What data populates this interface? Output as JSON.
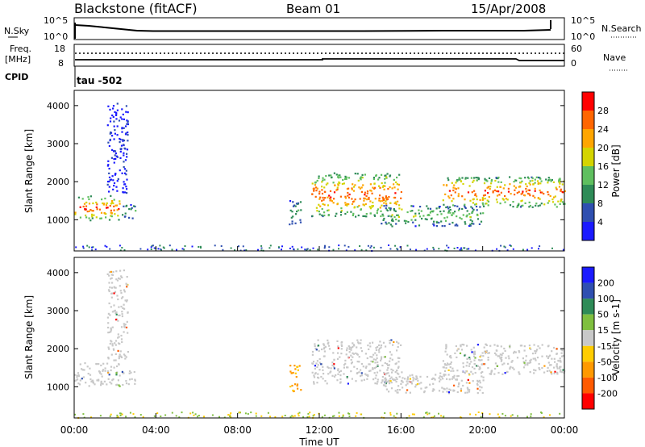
{
  "header": {
    "station": "Blackstone (fitACF)",
    "beam": "Beam 01",
    "date": "15/Apr/2008"
  },
  "noise_panel": {
    "left_label": "N.Sky",
    "left_ticks": [
      "10^5",
      "10^0"
    ],
    "right_label": "N.Search",
    "right_ticks": [
      "10^5",
      "10^0"
    ]
  },
  "freq_panel": {
    "left_label_1": "Freq.",
    "left_label_2": "[MHz]",
    "left_ticks": [
      "18",
      "8"
    ],
    "right_label": "Nave",
    "right_ticks": [
      "60",
      "0"
    ],
    "cpid_label": "CPID",
    "cpid_value": "tau -502"
  },
  "colors": {
    "power_scale": [
      "#1a1aff",
      "#2f4fb0",
      "#2e8b57",
      "#5fbf5f",
      "#d4d400",
      "#ffa500",
      "#ff6600",
      "#ff0000"
    ],
    "velocity_scale": [
      "#ff0000",
      "#ff5a00",
      "#ff9900",
      "#ffcc00",
      "#c8c8c8",
      "#7fbf3f",
      "#2e8b57",
      "#2f4fb0",
      "#1a1aff"
    ],
    "ground_scatter": "#c8c8c8"
  },
  "chart_data": [
    {
      "type": "heatmap",
      "title": "",
      "xlabel": "Time UT",
      "ylabel": "Slant Range [km]",
      "xlim": [
        "00:00",
        "24:00"
      ],
      "ylim": [
        180,
        4400
      ],
      "x_ticks": [
        "00:00",
        "04:00",
        "08:00",
        "12:00",
        "16:00",
        "20:00",
        "00:00"
      ],
      "y_ticks": [
        "1000",
        "2000",
        "3000",
        "4000"
      ],
      "colorbar_label": "Power [dB]",
      "colorbar_ticks": [
        "4",
        "8",
        "12",
        "16",
        "20",
        "24",
        "28"
      ],
      "colorbar_range": [
        0,
        32
      ],
      "bands": [
        {
          "t_start": 0.0,
          "t_end": 2.2,
          "range_min": 1000,
          "range_max": 1650,
          "peak_power": 28
        },
        {
          "t_start": 2.3,
          "t_end": 3.0,
          "range_min": 1050,
          "range_max": 1450,
          "peak_power": 12
        },
        {
          "t_start": 1.6,
          "t_end": 2.6,
          "range_min": 1700,
          "range_max": 4100,
          "peak_power": 4
        },
        {
          "t_start": 10.5,
          "t_end": 11.1,
          "range_min": 900,
          "range_max": 1600,
          "peak_power": 12
        },
        {
          "t_start": 11.6,
          "t_end": 16.0,
          "range_min": 1100,
          "range_max": 2250,
          "peak_power": 28
        },
        {
          "t_start": 15.0,
          "t_end": 20.0,
          "range_min": 850,
          "range_max": 1400,
          "peak_power": 16
        },
        {
          "t_start": 18.0,
          "t_end": 24.0,
          "range_min": 1350,
          "range_max": 2150,
          "peak_power": 28
        }
      ]
    },
    {
      "type": "heatmap",
      "title": "",
      "xlabel": "Time UT",
      "ylabel": "Slant Range [km]",
      "xlim": [
        "00:00",
        "24:00"
      ],
      "ylim": [
        180,
        4400
      ],
      "x_ticks": [
        "00:00",
        "04:00",
        "08:00",
        "12:00",
        "16:00",
        "20:00",
        "00:00"
      ],
      "y_ticks": [
        "1000",
        "2000",
        "3000",
        "4000"
      ],
      "colorbar_label": "Velocity [m s-1]",
      "colorbar_ticks": [
        "200",
        "100",
        "50",
        "15",
        "-15",
        "-50",
        "-100",
        "-200"
      ],
      "colorbar_range": [
        -250,
        250
      ],
      "bands": [
        {
          "t_start": 0.0,
          "t_end": 2.2,
          "range_min": 1000,
          "range_max": 1650,
          "velocity": 0,
          "ground_scatter": true
        },
        {
          "t_start": 2.3,
          "t_end": 3.0,
          "range_min": 1050,
          "range_max": 1450,
          "velocity": 0,
          "ground_scatter": true
        },
        {
          "t_start": 1.6,
          "t_end": 2.6,
          "range_min": 1700,
          "range_max": 4100,
          "velocity": 0,
          "ground_scatter": true
        },
        {
          "t_start": 10.5,
          "t_end": 11.1,
          "range_min": 900,
          "range_max": 1600,
          "velocity": -40,
          "ground_scatter": false
        },
        {
          "t_start": 11.6,
          "t_end": 16.0,
          "range_min": 1100,
          "range_max": 2250,
          "velocity": 0,
          "ground_scatter": true
        },
        {
          "t_start": 15.0,
          "t_end": 20.0,
          "range_min": 850,
          "range_max": 1400,
          "velocity": 0,
          "ground_scatter": true
        },
        {
          "t_start": 18.0,
          "t_end": 24.0,
          "range_min": 1350,
          "range_max": 2150,
          "velocity": 0,
          "ground_scatter": true
        }
      ]
    }
  ]
}
